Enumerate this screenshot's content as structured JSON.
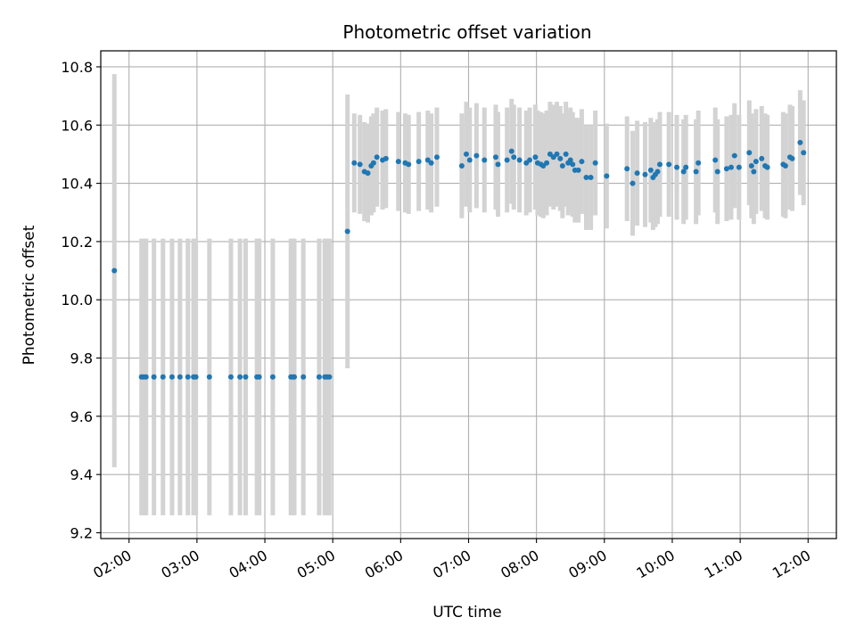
{
  "chart_data": {
    "type": "scatter",
    "title": "Photometric offset variation",
    "xlabel": "UTC time",
    "ylabel": "Photometric offset",
    "xlim": [
      "01:35",
      "12:25"
    ],
    "ylim": [
      9.18,
      10.855
    ],
    "grid": true,
    "x_ticks": [
      "02:00",
      "03:00",
      "04:00",
      "05:00",
      "06:00",
      "07:00",
      "08:00",
      "09:00",
      "10:00",
      "11:00",
      "12:00"
    ],
    "y_ticks": [
      "9.2",
      "9.4",
      "9.6",
      "9.8",
      "10.0",
      "10.2",
      "10.4",
      "10.6",
      "10.8"
    ],
    "colors": {
      "point": "#1f77b4",
      "errorbar": "#d3d3d3",
      "grid": "#b0b0b0",
      "axes": "#000000"
    },
    "series": [
      {
        "x": [
          "01:47",
          "02:11",
          "02:13",
          "02:15",
          "02:22",
          "02:30",
          "02:38",
          "02:45",
          "02:52",
          "02:57",
          "02:59",
          "03:11",
          "03:30",
          "03:38",
          "03:43",
          "03:53",
          "03:55",
          "04:07",
          "04:23",
          "04:25",
          "04:26",
          "04:34",
          "04:48",
          "04:53",
          "04:55",
          "04:57",
          "05:13",
          "05:19",
          "05:24",
          "05:28",
          "05:31",
          "05:34",
          "05:36",
          "05:39",
          "05:44",
          "05:47",
          "05:58",
          "06:04",
          "06:07",
          "06:16",
          "06:24",
          "06:27",
          "06:32",
          "06:54",
          "06:58",
          "07:01",
          "07:07",
          "07:14",
          "07:24",
          "07:26",
          "07:34",
          "07:38",
          "07:40",
          "07:45",
          "07:51",
          "07:54",
          "07:59",
          "08:01",
          "08:04",
          "08:06",
          "08:09",
          "08:12",
          "08:15",
          "08:18",
          "08:21",
          "08:23",
          "08:26",
          "08:28",
          "08:30",
          "08:32",
          "08:34",
          "08:37",
          "08:40",
          "08:44",
          "08:48",
          "08:52",
          "09:02",
          "09:20",
          "09:25",
          "09:29",
          "09:36",
          "09:41",
          "09:43",
          "09:45",
          "09:47",
          "09:49",
          "09:57",
          "10:04",
          "10:10",
          "10:12",
          "10:21",
          "10:23",
          "10:38",
          "10:40",
          "10:48",
          "10:52",
          "10:55",
          "10:59",
          "11:08",
          "11:10",
          "11:12",
          "11:14",
          "11:19",
          "11:22",
          "11:24",
          "11:38",
          "11:40",
          "11:44",
          "11:46",
          "11:53",
          "11:56"
        ],
        "y": [
          10.1,
          9.735,
          9.735,
          9.735,
          9.735,
          9.735,
          9.735,
          9.735,
          9.735,
          9.735,
          9.735,
          9.735,
          9.735,
          9.735,
          9.735,
          9.735,
          9.735,
          9.735,
          9.735,
          9.735,
          9.735,
          9.735,
          9.735,
          9.735,
          9.735,
          9.735,
          10.235,
          10.47,
          10.465,
          10.44,
          10.435,
          10.46,
          10.47,
          10.49,
          10.48,
          10.485,
          10.475,
          10.47,
          10.465,
          10.475,
          10.48,
          10.47,
          10.49,
          10.46,
          10.5,
          10.48,
          10.495,
          10.48,
          10.49,
          10.465,
          10.48,
          10.51,
          10.49,
          10.48,
          10.47,
          10.48,
          10.49,
          10.47,
          10.465,
          10.46,
          10.47,
          10.5,
          10.49,
          10.5,
          10.485,
          10.46,
          10.5,
          10.47,
          10.48,
          10.465,
          10.445,
          10.445,
          10.475,
          10.42,
          10.42,
          10.47,
          10.425,
          10.45,
          10.4,
          10.435,
          10.43,
          10.445,
          10.42,
          10.43,
          10.44,
          10.465,
          10.465,
          10.455,
          10.44,
          10.455,
          10.44,
          10.47,
          10.48,
          10.44,
          10.45,
          10.455,
          10.495,
          10.455,
          10.505,
          10.46,
          10.44,
          10.475,
          10.485,
          10.46,
          10.455,
          10.465,
          10.46,
          10.49,
          10.485,
          10.54,
          10.505
        ],
        "yerr": [
          0.675,
          0.475,
          0.475,
          0.475,
          0.475,
          0.475,
          0.475,
          0.475,
          0.475,
          0.475,
          0.475,
          0.475,
          0.475,
          0.475,
          0.475,
          0.475,
          0.475,
          0.475,
          0.475,
          0.475,
          0.475,
          0.475,
          0.475,
          0.475,
          0.475,
          0.475,
          0.47,
          0.17,
          0.17,
          0.17,
          0.17,
          0.17,
          0.17,
          0.17,
          0.17,
          0.17,
          0.17,
          0.17,
          0.17,
          0.17,
          0.17,
          0.17,
          0.17,
          0.18,
          0.18,
          0.18,
          0.18,
          0.18,
          0.18,
          0.18,
          0.18,
          0.18,
          0.18,
          0.18,
          0.18,
          0.18,
          0.18,
          0.18,
          0.18,
          0.18,
          0.18,
          0.18,
          0.18,
          0.18,
          0.18,
          0.18,
          0.18,
          0.18,
          0.18,
          0.18,
          0.18,
          0.18,
          0.18,
          0.18,
          0.18,
          0.18,
          0.18,
          0.18,
          0.18,
          0.18,
          0.18,
          0.18,
          0.18,
          0.18,
          0.18,
          0.18,
          0.18,
          0.18,
          0.18,
          0.18,
          0.18,
          0.18,
          0.18,
          0.18,
          0.18,
          0.18,
          0.18,
          0.18,
          0.18,
          0.18,
          0.18,
          0.18,
          0.18,
          0.18,
          0.18,
          0.18,
          0.18,
          0.18,
          0.18,
          0.18,
          0.18
        ]
      }
    ]
  }
}
